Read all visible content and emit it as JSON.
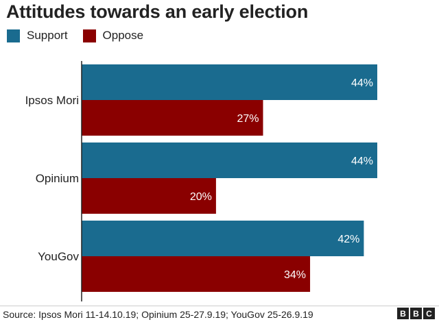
{
  "chart_data": {
    "type": "bar",
    "orientation": "horizontal",
    "title": "Attitudes towards an early election",
    "categories": [
      "Ipsos Mori",
      "Opinium",
      "YouGov"
    ],
    "series": [
      {
        "name": "Support",
        "color": "#1a6b8f",
        "values": [
          44,
          44,
          42
        ],
        "labels": [
          "44%",
          "44%",
          "42%"
        ]
      },
      {
        "name": "Oppose",
        "color": "#8a0000",
        "values": [
          27,
          20,
          34
        ],
        "labels": [
          "27%",
          "20%",
          "34%"
        ]
      }
    ],
    "xlim": [
      0,
      45
    ],
    "grid": false,
    "legend": "top-left"
  },
  "source": "Source: Ipsos Mori 11-14.10.19; Opinium 25-27.9.19; YouGov 25-26.9.19",
  "logo": {
    "letters": [
      "B",
      "B",
      "C"
    ]
  }
}
